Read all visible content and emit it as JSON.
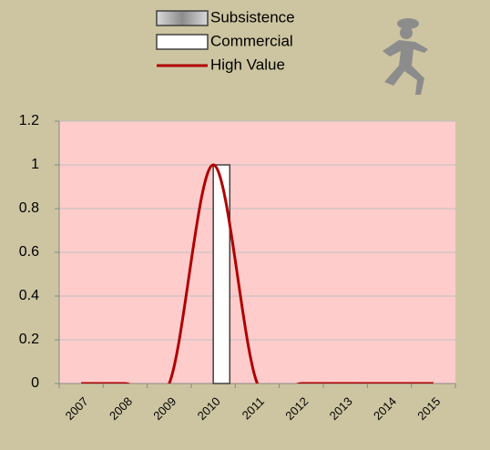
{
  "chart_data": {
    "type": "bar",
    "categories": [
      "2007",
      "2008",
      "2009",
      "2010",
      "2011",
      "2012",
      "2013",
      "2014",
      "2015"
    ],
    "series": [
      {
        "name": "Subsistence",
        "type": "bar",
        "color": "#a6a6a6",
        "values": [
          0,
          0,
          0,
          0,
          0,
          0,
          0,
          0,
          0
        ]
      },
      {
        "name": "Commercial",
        "type": "bar",
        "color": "#ffffff",
        "values": [
          0,
          0,
          0,
          1,
          0,
          0,
          0,
          0,
          0
        ]
      },
      {
        "name": "High Value",
        "type": "line",
        "color": "#b00000",
        "values": [
          0,
          0,
          0,
          1,
          0,
          0,
          0,
          0,
          0
        ]
      }
    ],
    "ylim": [
      0,
      1.2
    ],
    "yticks": [
      0,
      0.2,
      0.4,
      0.6,
      0.8,
      1,
      1.2
    ],
    "grid": true,
    "plot_background": "#ffcccc"
  }
}
